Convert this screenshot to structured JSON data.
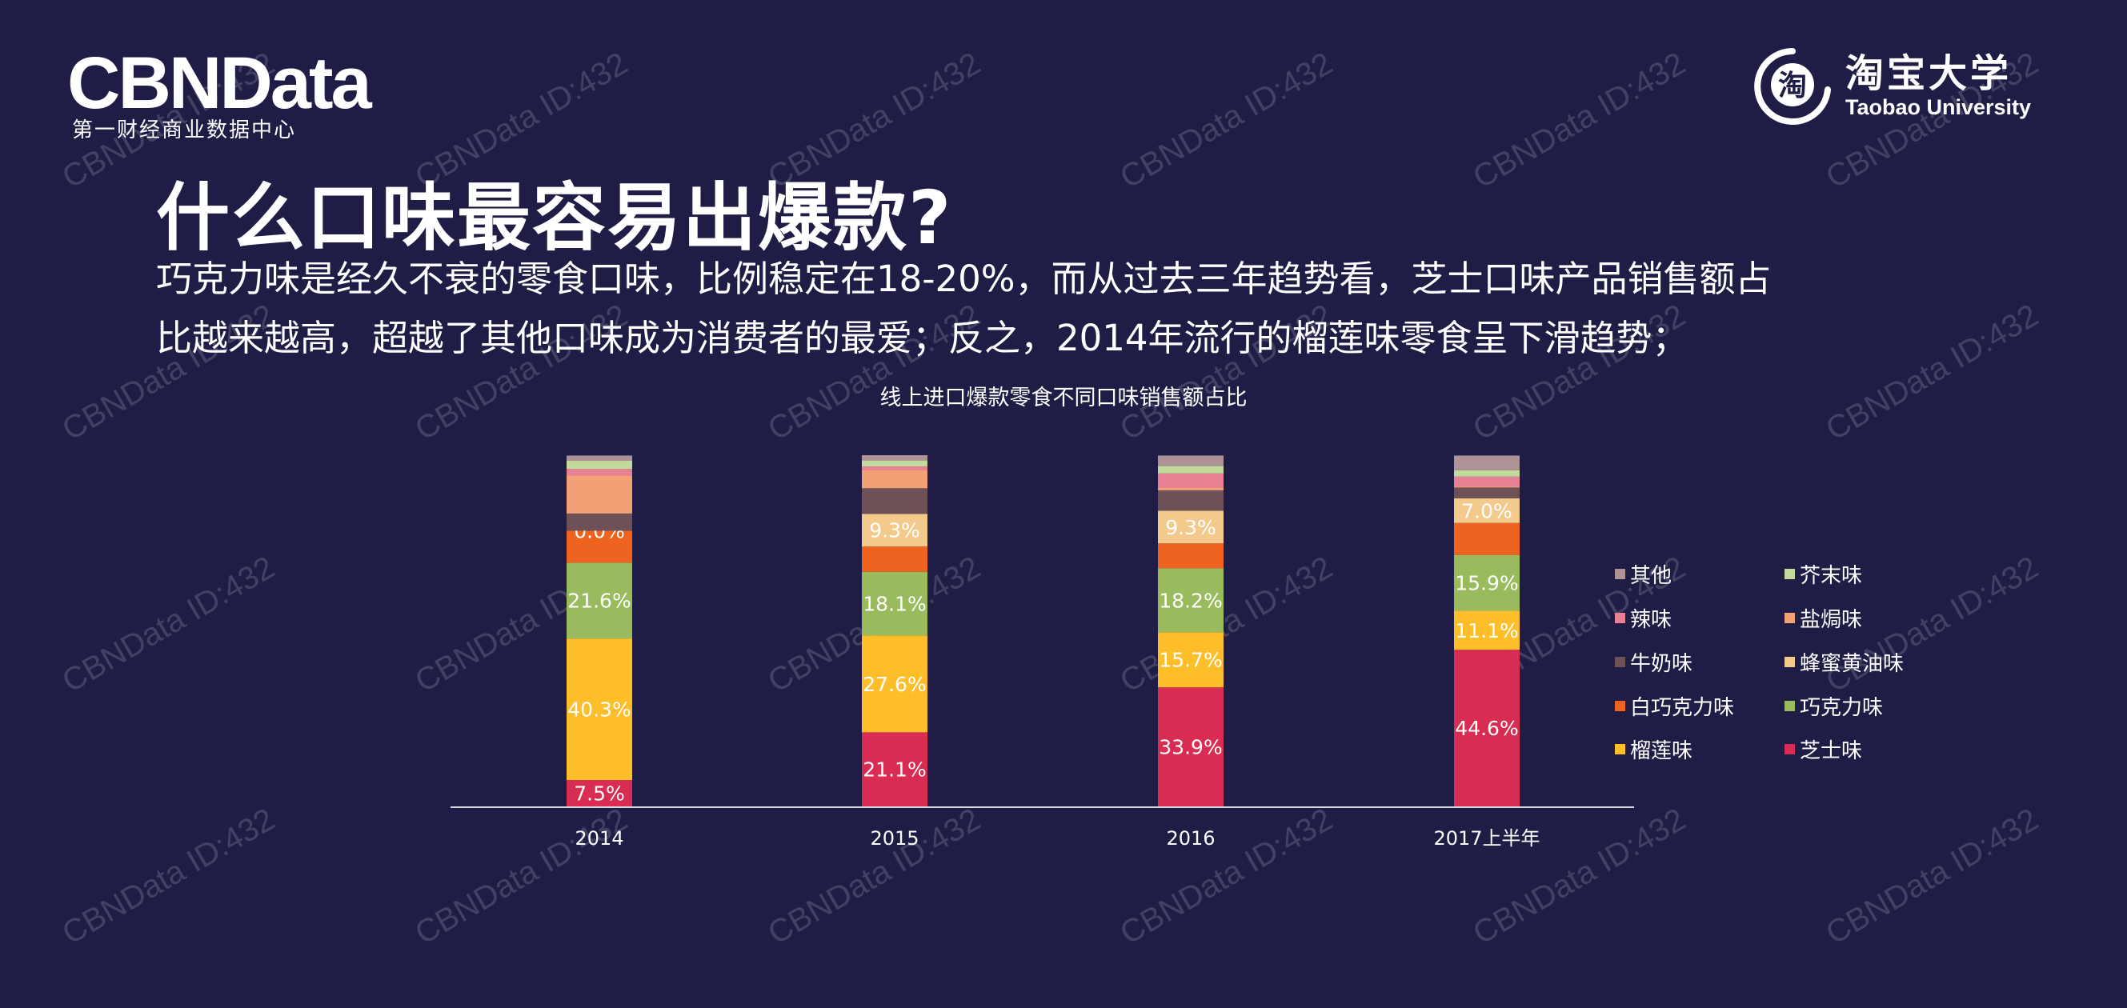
{
  "header": {
    "logo_left": "CBNData",
    "logo_left_sub": "第一财经商业数据中心",
    "logo_right_glyph": "淘",
    "logo_right_name": "淘宝大学",
    "logo_right_en": "Taobao University"
  },
  "title": "什么口味最容易出爆款?",
  "body_lines": [
    "巧克力味是经久不衰的零食口味，比例稳定在18-20%，而从过去三年趋势看，芝士口味产品销售额占",
    "比越来越高，超越了其他口味成为消费者的最爱；反之，2014年流行的榴莲味零食呈下滑趋势；"
  ],
  "watermark": "CBNData ID:432",
  "chart_data": {
    "type": "bar",
    "stacked": true,
    "title": "线上进口爆款零食不同口味销售额占比",
    "categories": [
      "2014",
      "2015",
      "2016",
      "2017上半年"
    ],
    "ylim": [
      0,
      100
    ],
    "unit": "%",
    "grid": false,
    "legend_placement": "right",
    "series": [
      {
        "name": "芝士味",
        "color": "#d92c52",
        "values": [
          7.5,
          21.1,
          33.9,
          44.6
        ],
        "labels": [
          "7.5%",
          "21.1%",
          "33.9%",
          "44.6%"
        ]
      },
      {
        "name": "榴莲味",
        "color": "#fdbe2a",
        "values": [
          40.3,
          27.6,
          15.7,
          11.1
        ],
        "labels": [
          "40.3%",
          "27.6%",
          "15.7%",
          "11.1%"
        ]
      },
      {
        "name": "巧克力味",
        "color": "#9aba5e",
        "values": [
          21.6,
          18.1,
          18.2,
          15.9
        ],
        "labels": [
          "21.6%",
          "18.1%",
          "18.2%",
          "15.9%"
        ]
      },
      {
        "name": "白巧克力味",
        "color": "#ee631f",
        "values": [
          9.1,
          7.2,
          7.1,
          9.1
        ]
      },
      {
        "name": "蜂蜜黄油味",
        "color": "#f3c98c",
        "values": [
          0.0,
          9.3,
          9.3,
          7.0
        ],
        "labels": [
          "0.0%",
          "9.3%",
          "9.3%",
          "7.0%"
        ]
      },
      {
        "name": "牛奶味",
        "color": "#6d5156",
        "values": [
          4.9,
          7.3,
          5.8,
          3.1
        ]
      },
      {
        "name": "盐焗味",
        "color": "#f4a077",
        "values": [
          10.8,
          5.2,
          0.8,
          0.2
        ]
      },
      {
        "name": "辣味",
        "color": "#e98195",
        "values": [
          1.9,
          1.0,
          4.0,
          2.9
        ]
      },
      {
        "name": "芥末味",
        "color": "#c4d99c",
        "values": [
          2.3,
          1.7,
          2.1,
          1.8
        ]
      },
      {
        "name": "其他",
        "color": "#ae9396",
        "values": [
          1.5,
          1.5,
          3.0,
          4.2
        ]
      }
    ],
    "legend_order": [
      "其他",
      "芥末味",
      "辣味",
      "盐焗味",
      "牛奶味",
      "蜂蜜黄油味",
      "白巧克力味",
      "巧克力味",
      "榴莲味",
      "芝士味"
    ]
  }
}
